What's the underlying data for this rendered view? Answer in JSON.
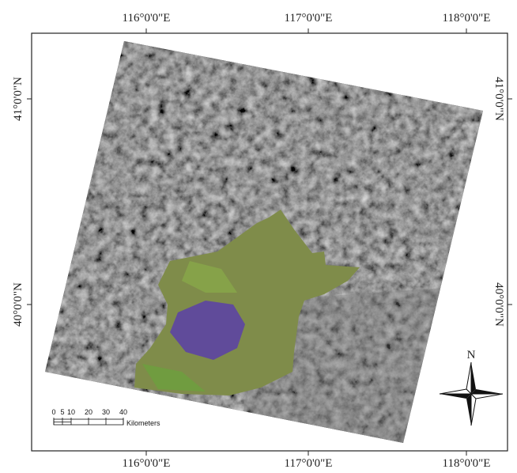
{
  "graticule": {
    "top": [
      "116°0'0\"E",
      "117°0'0\"E",
      "118°0'0\"E"
    ],
    "bottom": [
      "116°0'0\"E",
      "117°0'0\"E",
      "118°0'0\"E"
    ],
    "left": [
      "41°0'0\"N",
      "40°0'0\"N"
    ],
    "right": [
      "41°0'0\"N",
      "40°0'0\"N"
    ]
  },
  "north_arrow": {
    "label": "N"
  },
  "scale_bar": {
    "ticks": [
      0,
      5,
      10,
      20,
      30,
      40
    ],
    "unit": "Kilometers"
  }
}
